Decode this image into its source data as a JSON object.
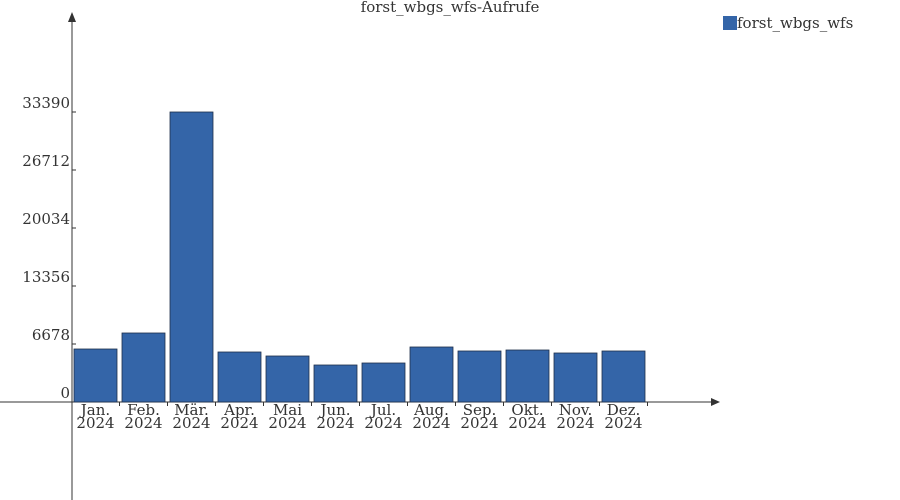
{
  "chart_data": {
    "type": "bar",
    "title": "forst_wbgs_wfs-Aufrufe",
    "categories": [
      [
        "Jan.",
        "2024"
      ],
      [
        "Feb.",
        "2024"
      ],
      [
        "Mär.",
        "2024"
      ],
      [
        "Apr.",
        "2024"
      ],
      [
        "Mai",
        "2024"
      ],
      [
        "Jun.",
        "2024"
      ],
      [
        "Jul.",
        "2024"
      ],
      [
        "Aug.",
        "2024"
      ],
      [
        "Sep.",
        "2024"
      ],
      [
        "Okt.",
        "2024"
      ],
      [
        "Nov.",
        "2024"
      ],
      [
        "Dez.",
        "2024"
      ]
    ],
    "series": [
      {
        "name": "forst_wbgs_wfs",
        "color": "#3465a8",
        "values": [
          6102,
          7945,
          33390,
          5757,
          5296,
          4260,
          4490,
          6333,
          5872,
          5987,
          5642,
          5872
        ]
      }
    ],
    "ylim": [
      -11283,
      44558
    ],
    "yticks": [
      0,
      6678,
      13356,
      20034,
      26712,
      33390
    ],
    "legend": "top-right"
  }
}
